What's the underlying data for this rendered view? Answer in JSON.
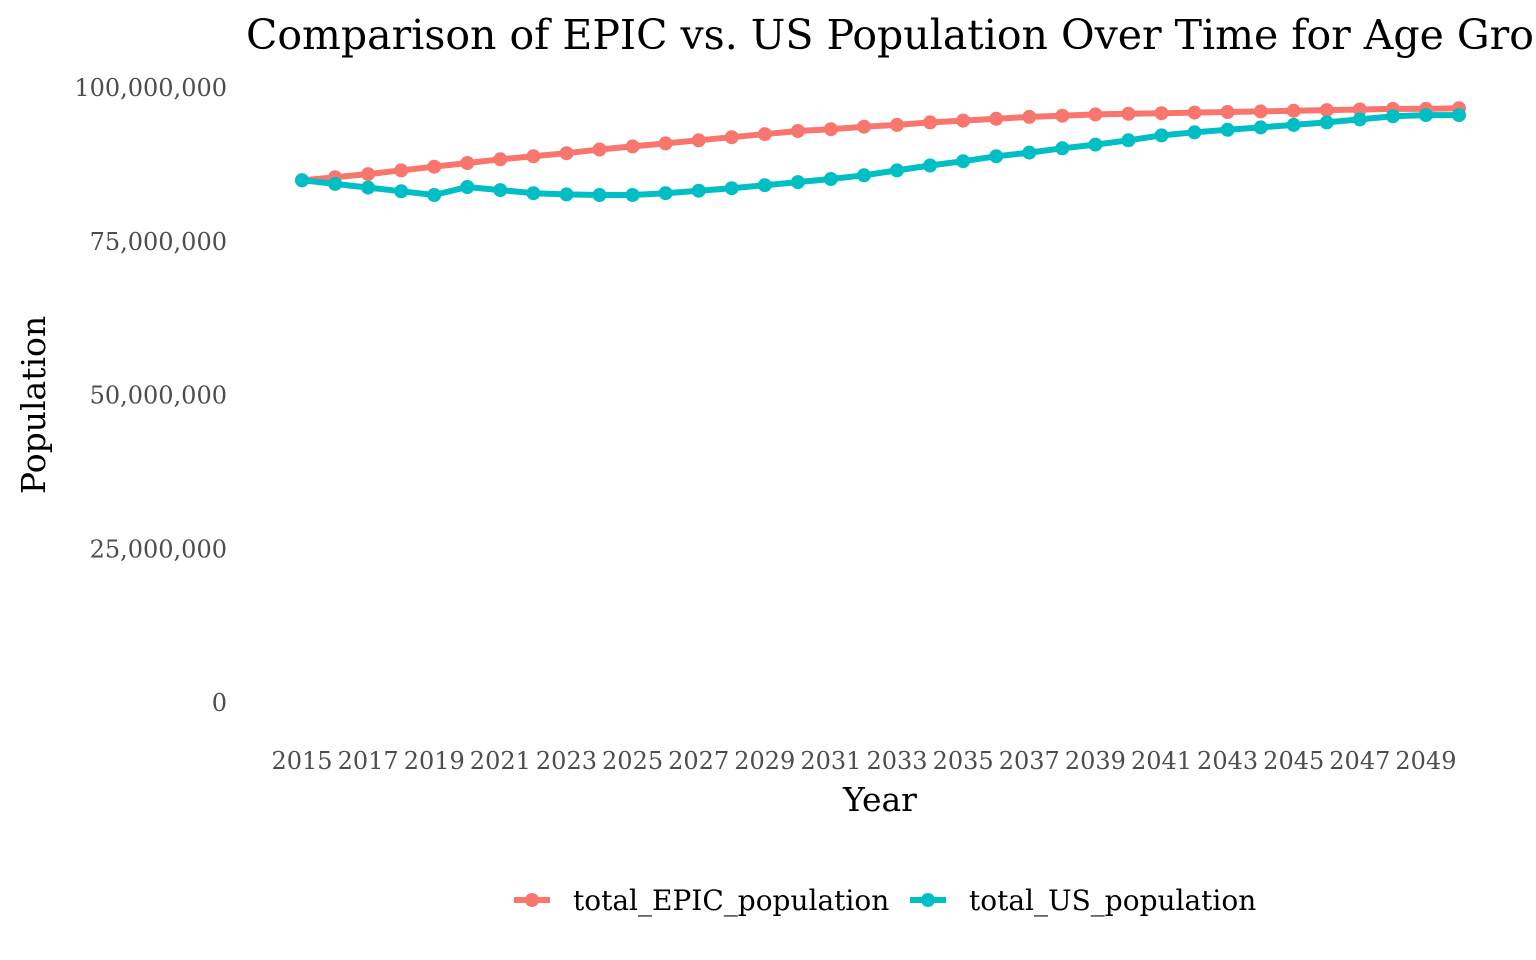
{
  "chart_data": {
    "type": "line",
    "title": "Comparison of EPIC vs. US Population Over Time for Age Gro",
    "xlabel": "Year",
    "ylabel": "Population",
    "ylim": [
      0,
      100000000
    ],
    "xlim": [
      2015,
      2050
    ],
    "y_ticks": [
      0,
      25000000,
      50000000,
      75000000,
      100000000
    ],
    "y_tick_labels": [
      "0",
      "25,000,000",
      "50,000,000",
      "75,000,000",
      "100,000,000"
    ],
    "x_ticks": [
      2015,
      2017,
      2019,
      2021,
      2023,
      2025,
      2027,
      2029,
      2031,
      2033,
      2035,
      2037,
      2039,
      2041,
      2043,
      2045,
      2047,
      2049
    ],
    "x_tick_labels": [
      "2015",
      "2017",
      "2019",
      "2021",
      "2023",
      "2025",
      "2027",
      "2029",
      "2031",
      "2033",
      "2035",
      "2037",
      "2039",
      "2041",
      "2043",
      "2045",
      "2047",
      "2049"
    ],
    "grid": false,
    "legend": "bottom",
    "x": [
      2015,
      2016,
      2017,
      2018,
      2019,
      2020,
      2021,
      2022,
      2023,
      2024,
      2025,
      2026,
      2027,
      2028,
      2029,
      2030,
      2031,
      2032,
      2033,
      2034,
      2035,
      2036,
      2037,
      2038,
      2039,
      2040,
      2041,
      2042,
      2043,
      2044,
      2045,
      2046,
      2047,
      2048,
      2049,
      2050
    ],
    "series": [
      {
        "name": "total_EPIC_population",
        "color": "#F8766D",
        "values": [
          85000000,
          85500000,
          86000000,
          86600000,
          87200000,
          87800000,
          88400000,
          88900000,
          89400000,
          90000000,
          90500000,
          91000000,
          91500000,
          92000000,
          92500000,
          93000000,
          93300000,
          93700000,
          94000000,
          94400000,
          94700000,
          95000000,
          95300000,
          95500000,
          95700000,
          95800000,
          95900000,
          96000000,
          96100000,
          96200000,
          96300000,
          96400000,
          96500000,
          96600000,
          96600000,
          96700000
        ]
      },
      {
        "name": "total_US_population",
        "color": "#00BFC4",
        "values": [
          85000000,
          84400000,
          83800000,
          83200000,
          82600000,
          83900000,
          83400000,
          82900000,
          82700000,
          82600000,
          82600000,
          82900000,
          83300000,
          83700000,
          84200000,
          84700000,
          85200000,
          85800000,
          86600000,
          87400000,
          88100000,
          88900000,
          89500000,
          90200000,
          90800000,
          91500000,
          92300000,
          92800000,
          93200000,
          93600000,
          94000000,
          94400000,
          94900000,
          95400000,
          95600000,
          95600000
        ]
      }
    ]
  }
}
